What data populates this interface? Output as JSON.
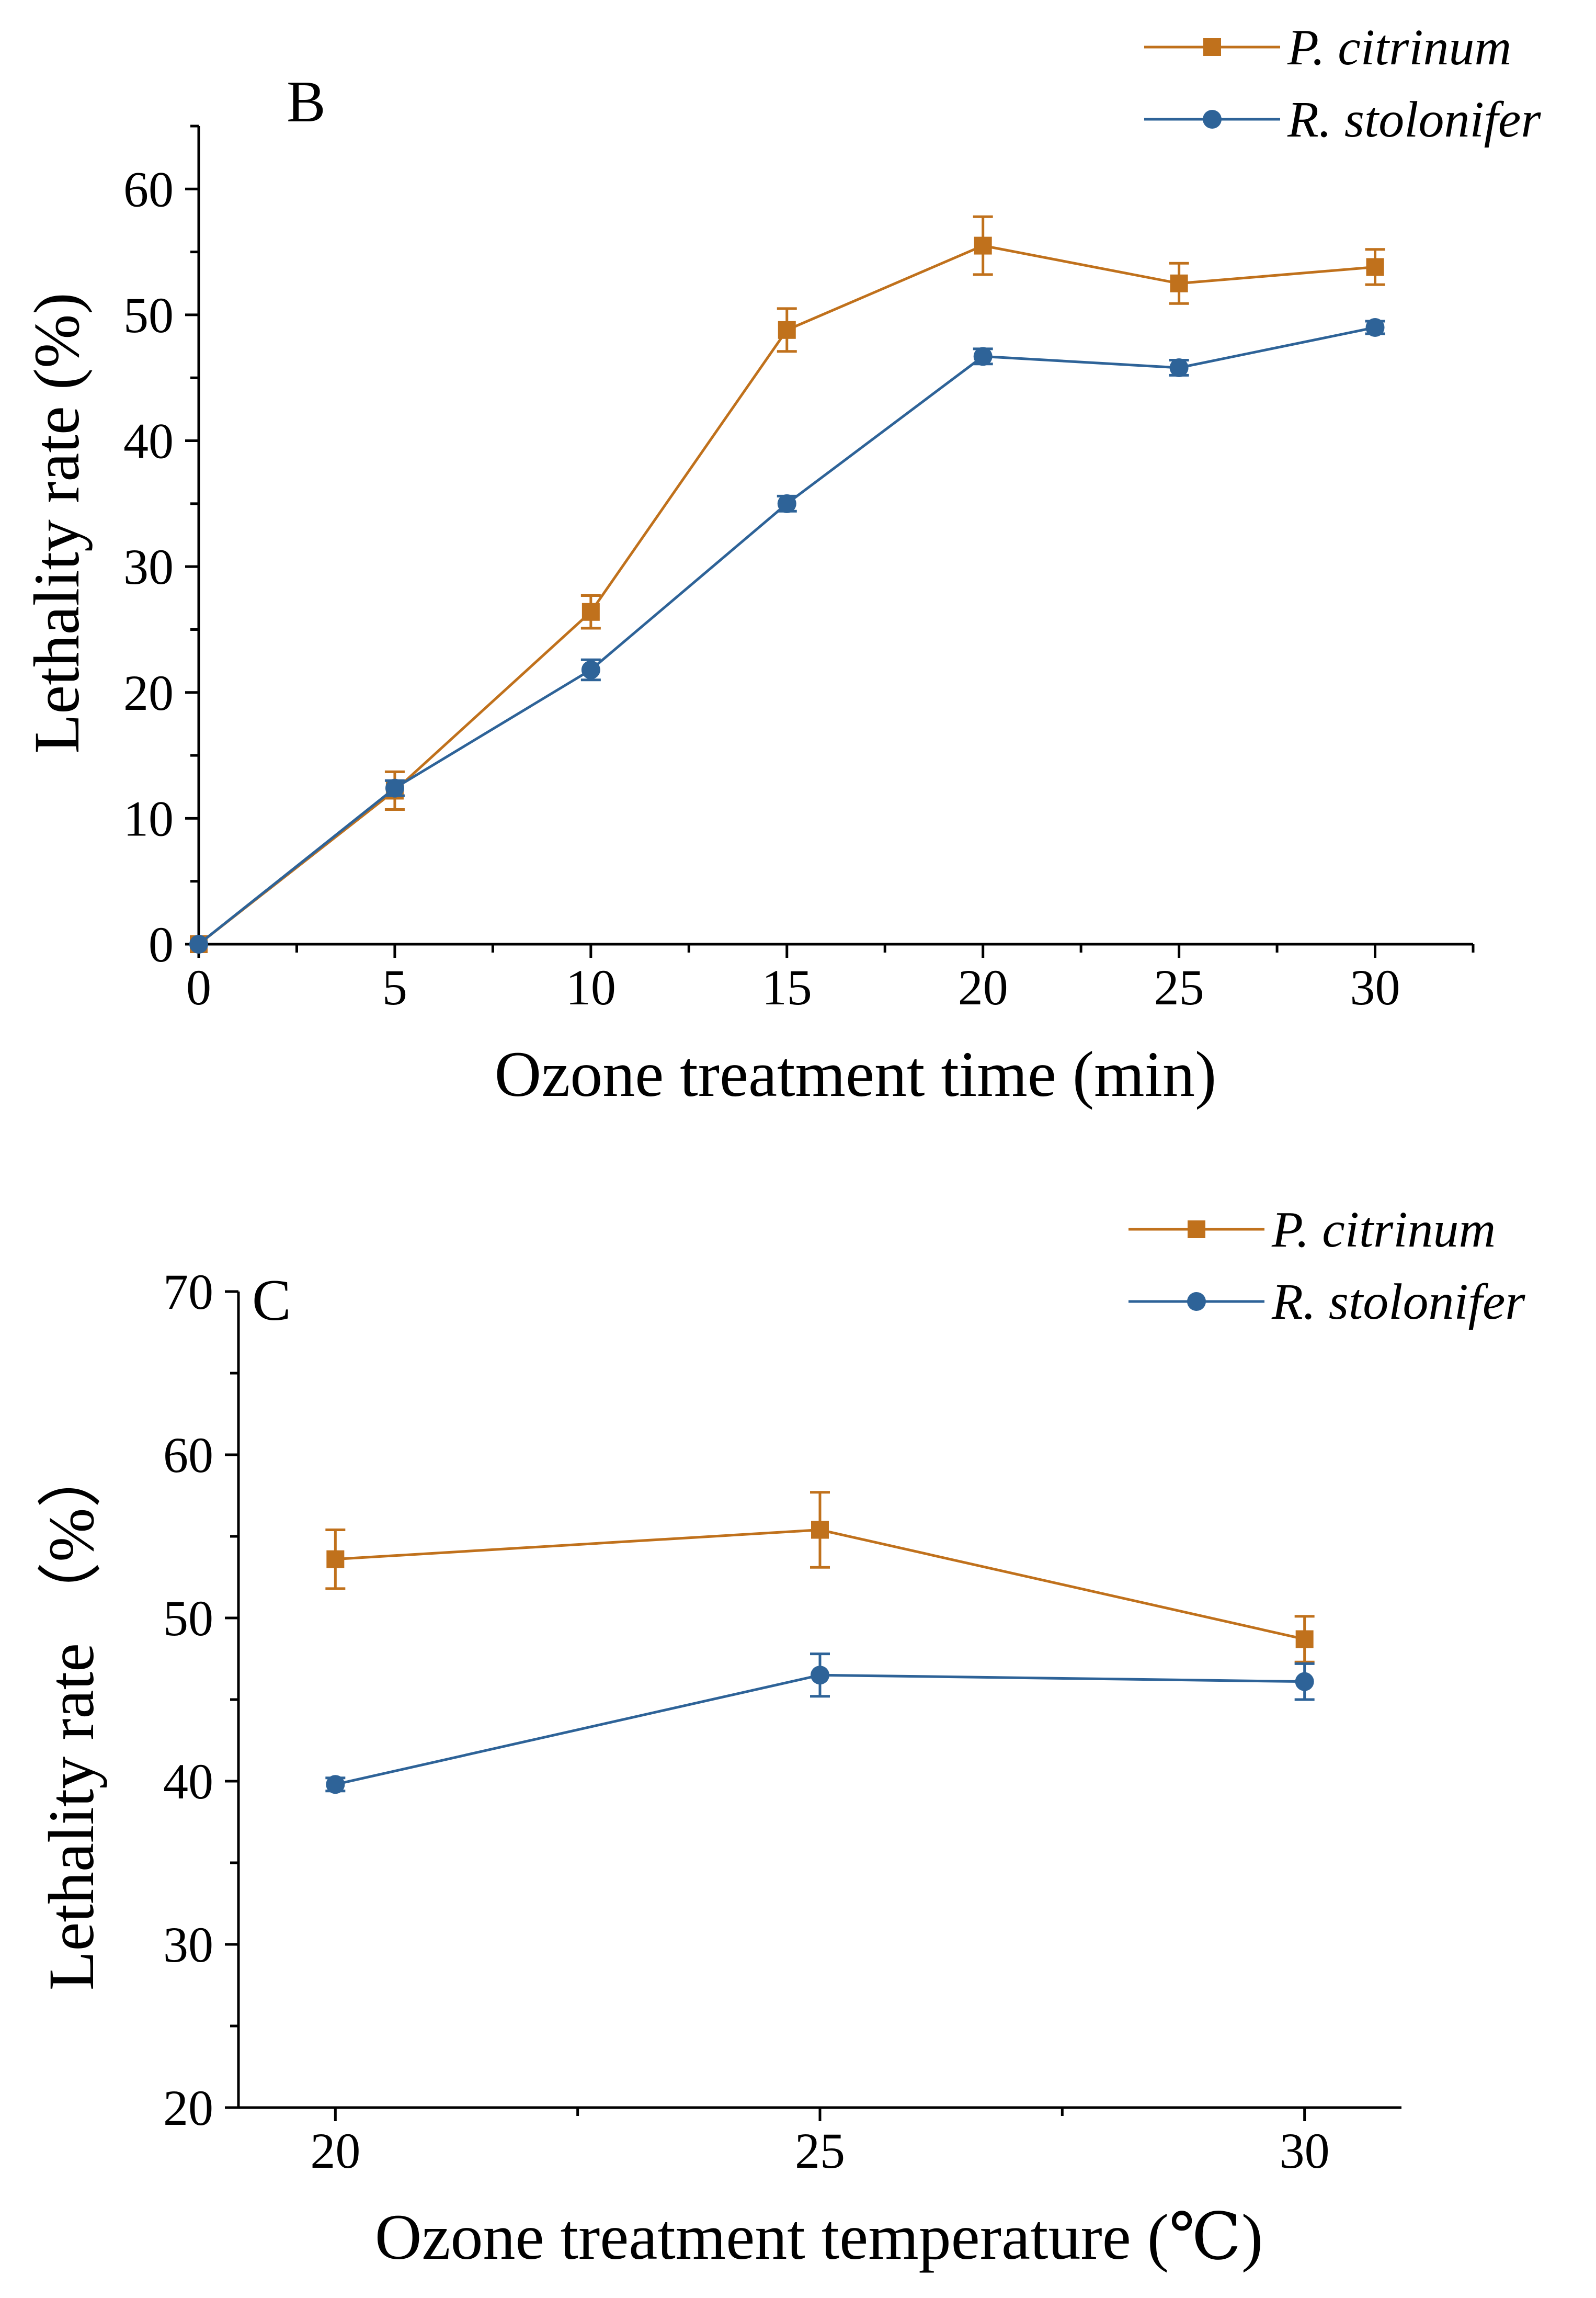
{
  "colors": {
    "p_citrinum": "#C0711C",
    "r_stolonifer": "#2E6398",
    "axis": "#000000"
  },
  "chart_data": [
    {
      "type": "line",
      "panel_label": "B",
      "title": "",
      "xlabel": "Ozone treatment time (min)",
      "ylabel": "Lethality rate (%)",
      "x": [
        0,
        5,
        10,
        15,
        20,
        25,
        30
      ],
      "x_ticks": [
        "0",
        "5",
        "10",
        "15",
        "20",
        "25",
        "30"
      ],
      "xlim": [
        0,
        32.5
      ],
      "y_ticks": [
        "0",
        "10",
        "20",
        "30",
        "40",
        "50",
        "60"
      ],
      "y_tick_values": [
        0,
        10,
        20,
        30,
        40,
        50,
        60
      ],
      "ylim": [
        0,
        65
      ],
      "grid": false,
      "legend_position": "top-right",
      "series": [
        {
          "name": "P. citrinum",
          "color_key": "p_citrinum",
          "marker": "square",
          "values": [
            0,
            12.2,
            26.4,
            48.8,
            55.5,
            52.5,
            53.8
          ],
          "errors": [
            0,
            1.5,
            1.3,
            1.7,
            2.3,
            1.6,
            1.4
          ]
        },
        {
          "name": "R. stolonifer",
          "color_key": "r_stolonifer",
          "marker": "circle",
          "values": [
            0,
            12.4,
            21.8,
            35.0,
            46.7,
            45.8,
            49.0
          ],
          "errors": [
            0,
            0.6,
            0.8,
            0.6,
            0.6,
            0.6,
            0.5
          ]
        }
      ]
    },
    {
      "type": "line",
      "panel_label": "C",
      "title": "",
      "xlabel": "Ozone treatment temperature (℃)",
      "ylabel": "Lethality rate （%）",
      "x": [
        20,
        25,
        30
      ],
      "x_ticks": [
        "20",
        "25",
        "30"
      ],
      "xlim": [
        19,
        31
      ],
      "y_ticks": [
        "20",
        "30",
        "40",
        "50",
        "60",
        "70"
      ],
      "y_tick_values": [
        20,
        30,
        40,
        50,
        60,
        70
      ],
      "ylim": [
        20,
        70
      ],
      "grid": false,
      "legend_position": "top-right",
      "series": [
        {
          "name": "P. citrinum",
          "color_key": "p_citrinum",
          "marker": "square",
          "values": [
            53.6,
            55.4,
            48.7
          ],
          "errors": [
            1.8,
            2.3,
            1.4
          ]
        },
        {
          "name": "R. stolonifer",
          "color_key": "r_stolonifer",
          "marker": "circle",
          "values": [
            39.8,
            46.5,
            46.1
          ],
          "errors": [
            0.4,
            1.3,
            1.1
          ]
        }
      ]
    }
  ]
}
